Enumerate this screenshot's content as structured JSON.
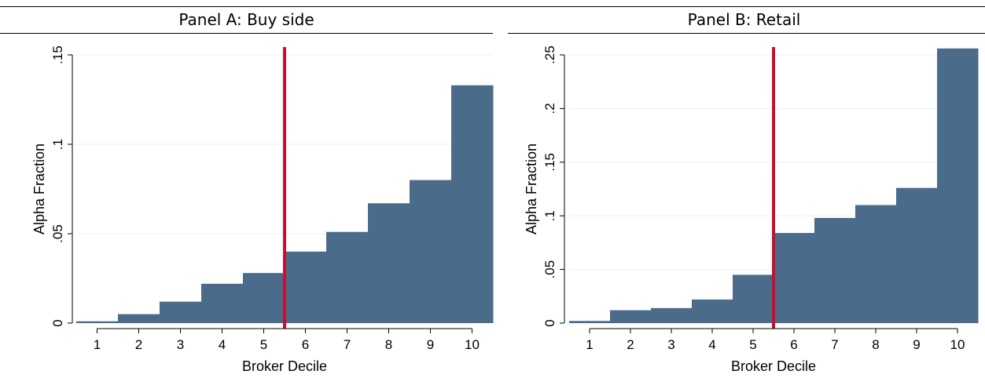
{
  "panels": {
    "a": {
      "title": "Panel A: Buy side"
    },
    "b": {
      "title": "Panel B: Retail"
    }
  },
  "colors": {
    "bar": "#4a6b8a",
    "cutoff_line": "#c8102e",
    "grid": "#eaf0f3"
  },
  "chart_data": [
    {
      "type": "bar",
      "title": "Panel A: Buy side",
      "xlabel": "Broker Decile",
      "ylabel": "Alpha Fraction",
      "categories": [
        "1",
        "2",
        "3",
        "4",
        "5",
        "6",
        "7",
        "8",
        "9",
        "10"
      ],
      "values": [
        0.001,
        0.005,
        0.012,
        0.022,
        0.028,
        0.04,
        0.051,
        0.067,
        0.08,
        0.133
      ],
      "ylim": [
        0,
        0.15
      ],
      "yticks": [
        0,
        0.05,
        0.1,
        0.15
      ],
      "ytick_labels": [
        "0",
        ".05",
        ".1",
        ".15"
      ],
      "vline_x": 5.5,
      "grid": true
    },
    {
      "type": "bar",
      "title": "Panel B: Retail",
      "xlabel": "Broker Decile",
      "ylabel": "Alpha Fraction",
      "categories": [
        "1",
        "2",
        "3",
        "4",
        "5",
        "6",
        "7",
        "8",
        "9",
        "10"
      ],
      "values": [
        0.002,
        0.012,
        0.014,
        0.022,
        0.045,
        0.084,
        0.098,
        0.11,
        0.126,
        0.256
      ],
      "ylim": [
        0,
        0.25
      ],
      "yticks": [
        0,
        0.05,
        0.1,
        0.15,
        0.2,
        0.25
      ],
      "ytick_labels": [
        "0",
        ".05",
        ".1",
        ".15",
        ".2",
        ".25"
      ],
      "vline_x": 5.5,
      "grid": true
    }
  ]
}
